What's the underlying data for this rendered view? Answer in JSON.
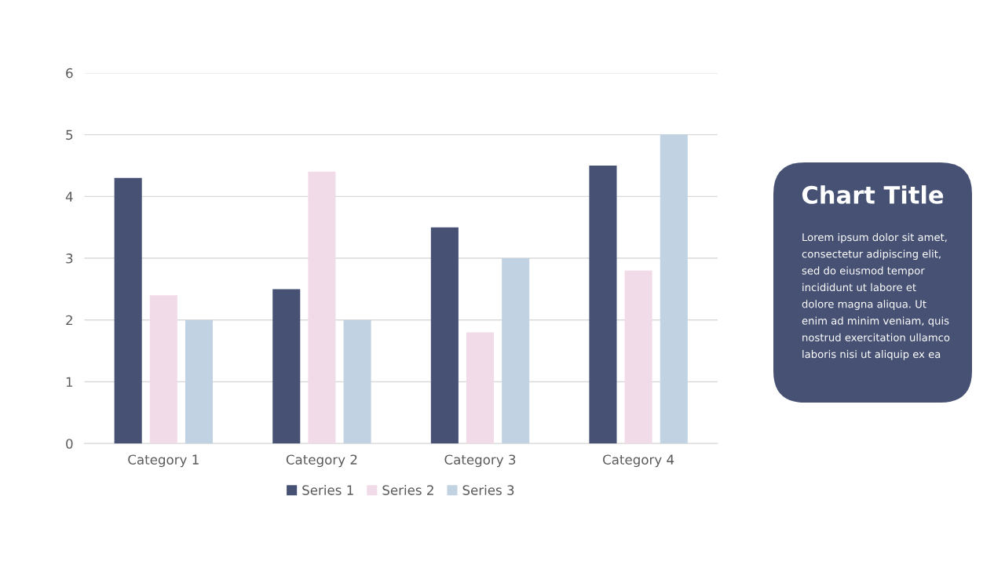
{
  "chart_data": [
    {
      "type": "bar",
      "categories": [
        "Category 1",
        "Category 2",
        "Category 3",
        "Category 4"
      ],
      "series": [
        {
          "name": "Series 1",
          "color": "#465173",
          "values": [
            4.3,
            2.5,
            3.5,
            4.5
          ]
        },
        {
          "name": "Series 2",
          "color": "#f2dbe8",
          "values": [
            2.4,
            4.4,
            1.8,
            2.8
          ]
        },
        {
          "name": "Series 3",
          "color": "#c1d3e3",
          "values": [
            2,
            2,
            3,
            5
          ]
        }
      ],
      "ylim": [
        0,
        6
      ],
      "yticks": [
        0,
        1,
        2,
        3,
        4,
        5,
        6
      ],
      "grid": "y",
      "legend": "bottom"
    },
    {
      "type": "other",
      "title": "Chart Title",
      "color": "#465173",
      "annotations": [
        "Lorem ipsum dolor sit amet,\nconsectetur adipiscing elit,\nsed do eiusmod tempor\nincididunt ut labore et\ndolore magna aliqua. Ut\nenim ad minim veniam, quis\nnostrud exercitation ullamco\nlaboris nisi ut aliquip ex ea"
      ]
    }
  ]
}
